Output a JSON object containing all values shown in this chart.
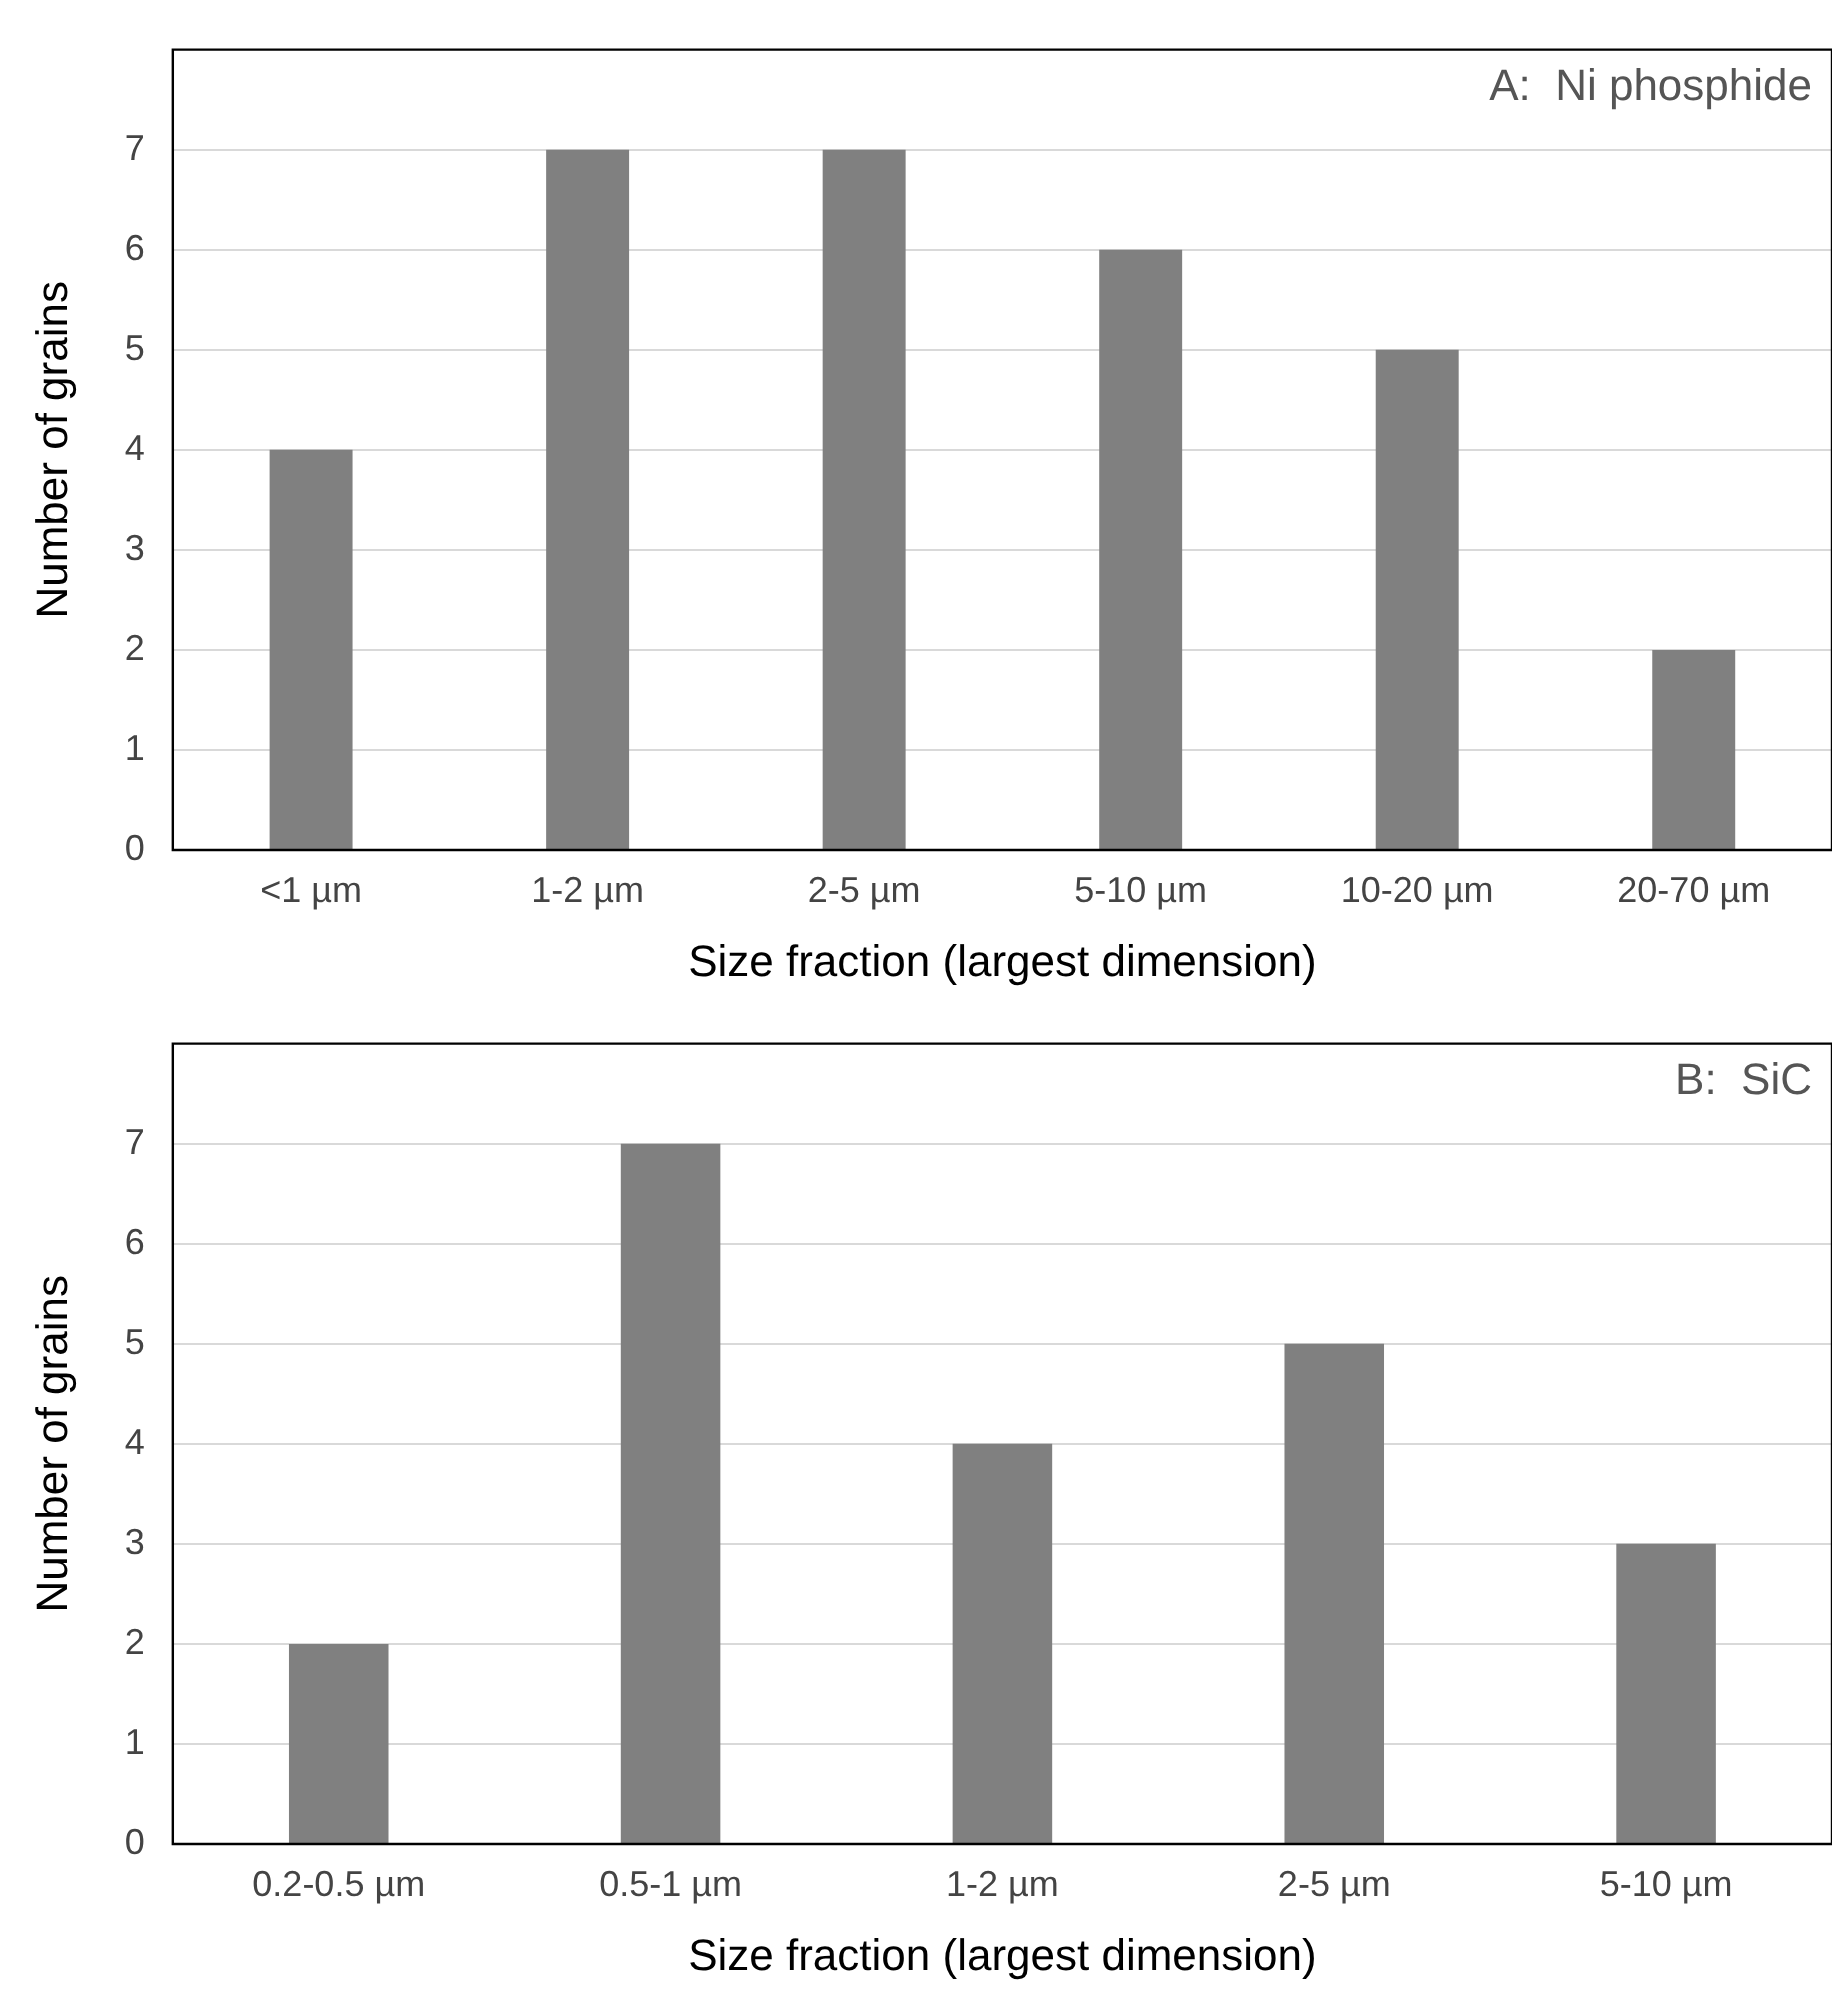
{
  "chart_data": [
    {
      "type": "bar",
      "title": "A:  Ni phosphide",
      "xlabel": "Size fraction (largest dimension)",
      "ylabel": "Number of grains",
      "categories": [
        "<1 µm",
        "1-2 µm",
        "2-5 µm",
        "5-10 µm",
        "10-20 µm",
        "20-70 µm"
      ],
      "values": [
        4,
        7,
        7,
        6,
        5,
        2
      ],
      "color": "#808080",
      "ylim": [
        0,
        8
      ],
      "yticks": [
        0,
        1,
        2,
        3,
        4,
        5,
        6,
        7
      ],
      "grid": "y",
      "legend": false
    },
    {
      "type": "bar",
      "title": "B:  SiC",
      "xlabel": "Size fraction (largest dimension)",
      "ylabel": "Number of grains",
      "categories": [
        "0.2-0.5 µm",
        "0.5-1 µm",
        "1-2 µm",
        "2-5 µm",
        "5-10 µm"
      ],
      "values": [
        2,
        7,
        4,
        5,
        3
      ],
      "color": "#808080",
      "ylim": [
        0,
        8
      ],
      "yticks": [
        0,
        1,
        2,
        3,
        4,
        5,
        6,
        7
      ],
      "grid": "y",
      "legend": false
    }
  ]
}
